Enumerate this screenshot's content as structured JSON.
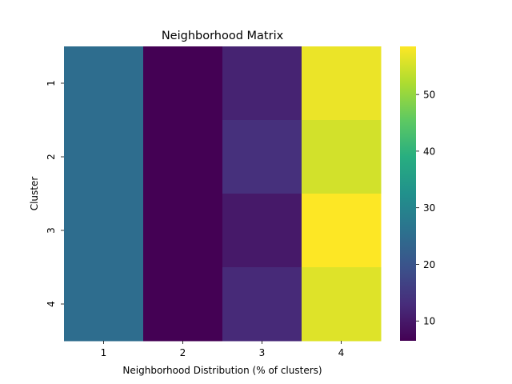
{
  "chart_data": {
    "type": "heatmap",
    "title": "Neighborhood Matrix",
    "xlabel": "Neighborhood Distribution (% of clusters)",
    "ylabel": "Cluster",
    "x_categories": [
      "1",
      "2",
      "3",
      "4"
    ],
    "y_categories": [
      "1",
      "2",
      "3",
      "4"
    ],
    "values": [
      [
        25.0,
        6.5,
        11.5,
        57.0
      ],
      [
        25.0,
        6.5,
        13.5,
        55.0
      ],
      [
        25.0,
        6.5,
        10.0,
        58.5
      ],
      [
        25.0,
        6.5,
        12.5,
        56.0
      ]
    ],
    "colormap": "viridis",
    "colorbar_range": [
      6.5,
      58.5
    ],
    "colorbar_ticks": [
      10,
      20,
      30,
      40,
      50
    ]
  }
}
